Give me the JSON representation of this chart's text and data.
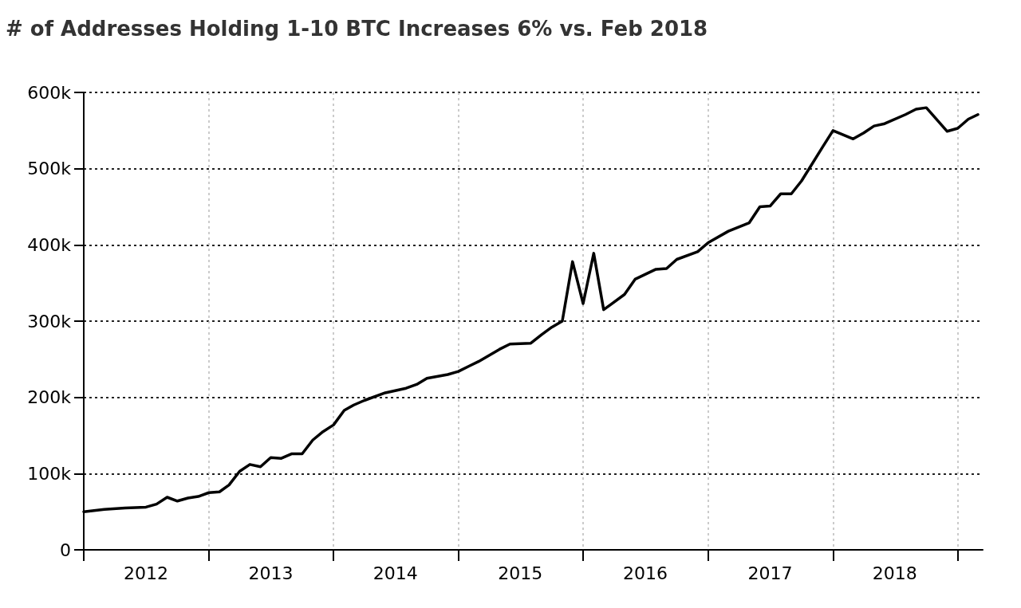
{
  "chart_data": {
    "type": "line",
    "title": "# of Addresses Holding 1-10 BTC Increases 6% vs. Feb 2018",
    "x": [
      "2012-01",
      "2012-03",
      "2012-05",
      "2012-07",
      "2012-08",
      "2012-09",
      "2012-10",
      "2012-11",
      "2012-12",
      "2013-01",
      "2013-02",
      "2013-03",
      "2013-04",
      "2013-05",
      "2013-06",
      "2013-07",
      "2013-08",
      "2013-09",
      "2013-10",
      "2013-11",
      "2013-12",
      "2014-01",
      "2014-02",
      "2014-03",
      "2014-04",
      "2014-06",
      "2014-08",
      "2014-09",
      "2014-10",
      "2014-12",
      "2015-01",
      "2015-02",
      "2015-03",
      "2015-05",
      "2015-06",
      "2015-08",
      "2015-09",
      "2015-10",
      "2015-11",
      "2015-12",
      "2016-01",
      "2016-02",
      "2016-03",
      "2016-05",
      "2016-06",
      "2016-08",
      "2016-09",
      "2016-10",
      "2016-12",
      "2017-01",
      "2017-03",
      "2017-05",
      "2017-06",
      "2017-07",
      "2017-08",
      "2017-09",
      "2017-10",
      "2017-12",
      "2018-01",
      "2018-03",
      "2018-04",
      "2018-05",
      "2018-06",
      "2018-08",
      "2018-09",
      "2018-10",
      "2018-12",
      "2019-01",
      "2019-02",
      "2019-03"
    ],
    "series": [
      {
        "color": "#000000",
        "values": [
          50000,
          53000,
          55000,
          56000,
          60000,
          69000,
          64000,
          68000,
          70000,
          75000,
          76000,
          85000,
          103000,
          112000,
          109000,
          121000,
          120000,
          126000,
          126000,
          144000,
          155000,
          164000,
          183000,
          190000,
          196000,
          206000,
          212000,
          217000,
          225000,
          230000,
          234000,
          241000,
          247000,
          263000,
          270000,
          271000,
          282000,
          292000,
          300000,
          378000,
          323000,
          389000,
          315000,
          335000,
          355000,
          368000,
          369000,
          381000,
          391000,
          403000,
          418000,
          429000,
          450000,
          451000,
          467000,
          467000,
          484000,
          528000,
          550000,
          539000,
          547000,
          556000,
          559000,
          571000,
          578000,
          580000,
          549000,
          553000,
          565000,
          571000
        ]
      }
    ],
    "xlim": [
      "2012-01-01",
      "2019-03-15"
    ],
    "xticks": [
      {
        "value": "2012-01-01",
        "label": null
      },
      {
        "value": "2012-07-01",
        "label": "2012"
      },
      {
        "value": "2013-01-01",
        "label": null
      },
      {
        "value": "2013-07-01",
        "label": "2013"
      },
      {
        "value": "2014-01-01",
        "label": null
      },
      {
        "value": "2014-07-01",
        "label": "2014"
      },
      {
        "value": "2015-01-01",
        "label": null
      },
      {
        "value": "2015-07-01",
        "label": "2015"
      },
      {
        "value": "2016-01-01",
        "label": null
      },
      {
        "value": "2016-07-01",
        "label": "2016"
      },
      {
        "value": "2017-01-01",
        "label": null
      },
      {
        "value": "2017-07-01",
        "label": "2017"
      },
      {
        "value": "2018-01-01",
        "label": null
      },
      {
        "value": "2018-07-01",
        "label": "2018"
      },
      {
        "value": "2019-01-01",
        "label": null
      }
    ],
    "ylim": [
      0,
      600000
    ],
    "yticks": [
      0,
      {
        "value": 100000,
        "label": "100k"
      },
      {
        "value": 200000,
        "label": "200k"
      },
      {
        "value": 300000,
        "label": "300k"
      },
      {
        "value": 400000,
        "label": "400k"
      },
      {
        "value": 500000,
        "label": "500k"
      },
      {
        "value": 600000,
        "label": "600k"
      }
    ],
    "grid": true,
    "marker": "none",
    "line_style": "solid"
  }
}
